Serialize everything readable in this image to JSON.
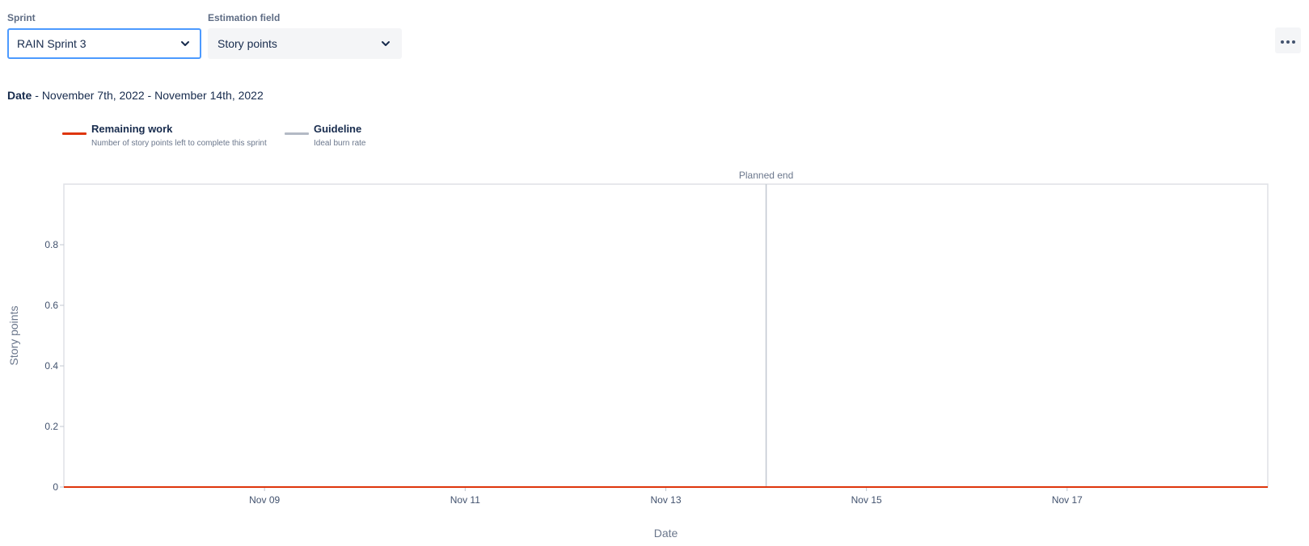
{
  "controls": {
    "sprint": {
      "label": "Sprint",
      "value": "RAIN Sprint 3"
    },
    "estimation": {
      "label": "Estimation field",
      "value": "Story points"
    },
    "more_icon": "more-horizontal-icon"
  },
  "date_range": {
    "label": "Date",
    "separator": " - ",
    "value": "November 7th, 2022 - November 14th, 2022"
  },
  "legend": {
    "remaining": {
      "title": "Remaining work",
      "description": "Number of story points left to complete this sprint",
      "color": "#de350b"
    },
    "guideline": {
      "title": "Guideline",
      "description": "Ideal burn rate",
      "color": "#b3bac5"
    }
  },
  "chart_data": {
    "type": "line",
    "xlabel": "Date",
    "ylabel": "Story points",
    "x_ticks": [
      "Nov 09",
      "Nov 11",
      "Nov 13",
      "Nov 15",
      "Nov 17"
    ],
    "x_tick_dates": [
      "2022-11-09",
      "2022-11-11",
      "2022-11-13",
      "2022-11-15",
      "2022-11-17"
    ],
    "xlim": [
      "2022-11-07",
      "2022-11-19"
    ],
    "y_ticks": [
      "0",
      "0.2",
      "0.4",
      "0.6",
      "0.8"
    ],
    "y_tick_values": [
      0,
      0.2,
      0.4,
      0.6,
      0.8
    ],
    "ylim": [
      0,
      1
    ],
    "planned_end": {
      "label": "Planned end",
      "date": "2022-11-14"
    },
    "series": [
      {
        "name": "Remaining work",
        "color": "#de350b",
        "points": [
          {
            "x": "2022-11-07",
            "y": 0
          },
          {
            "x": "2022-11-19",
            "y": 0
          }
        ]
      },
      {
        "name": "Guideline",
        "color": "#b3bac5",
        "points": [
          {
            "x": "2022-11-07",
            "y": 0
          },
          {
            "x": "2022-11-14",
            "y": 0
          }
        ]
      }
    ],
    "grid": false
  }
}
